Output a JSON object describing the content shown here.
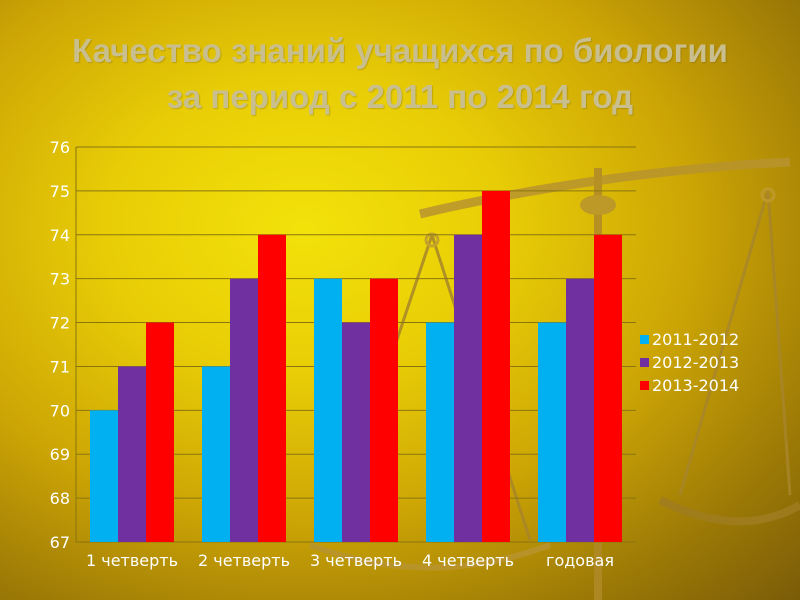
{
  "title": {
    "line1": "Качество знаний учащихся по биологии",
    "line2": "за период с 2011 по 2014 год"
  },
  "colors": {
    "2011-2012": "#00b0f0",
    "2012-2013": "#7030a0",
    "2013-2014": "#ff0000"
  },
  "decoration": {
    "icon": "balance-scales-icon"
  },
  "chart_data": {
    "type": "bar",
    "categories": [
      "1 четверть",
      "2 четверть",
      "3 четверть",
      "4 четверть",
      "годовая"
    ],
    "series": [
      {
        "name": "2011-2012",
        "values": [
          70,
          71,
          73,
          72,
          72
        ]
      },
      {
        "name": "2012-2013",
        "values": [
          71,
          73,
          72,
          74,
          73
        ]
      },
      {
        "name": "2013-2014",
        "values": [
          72,
          74,
          73,
          75,
          74
        ]
      }
    ],
    "ylim": [
      67,
      76
    ],
    "yticks": [
      67,
      68,
      69,
      70,
      71,
      72,
      73,
      74,
      75,
      76
    ],
    "grid": true,
    "legend": "right"
  }
}
